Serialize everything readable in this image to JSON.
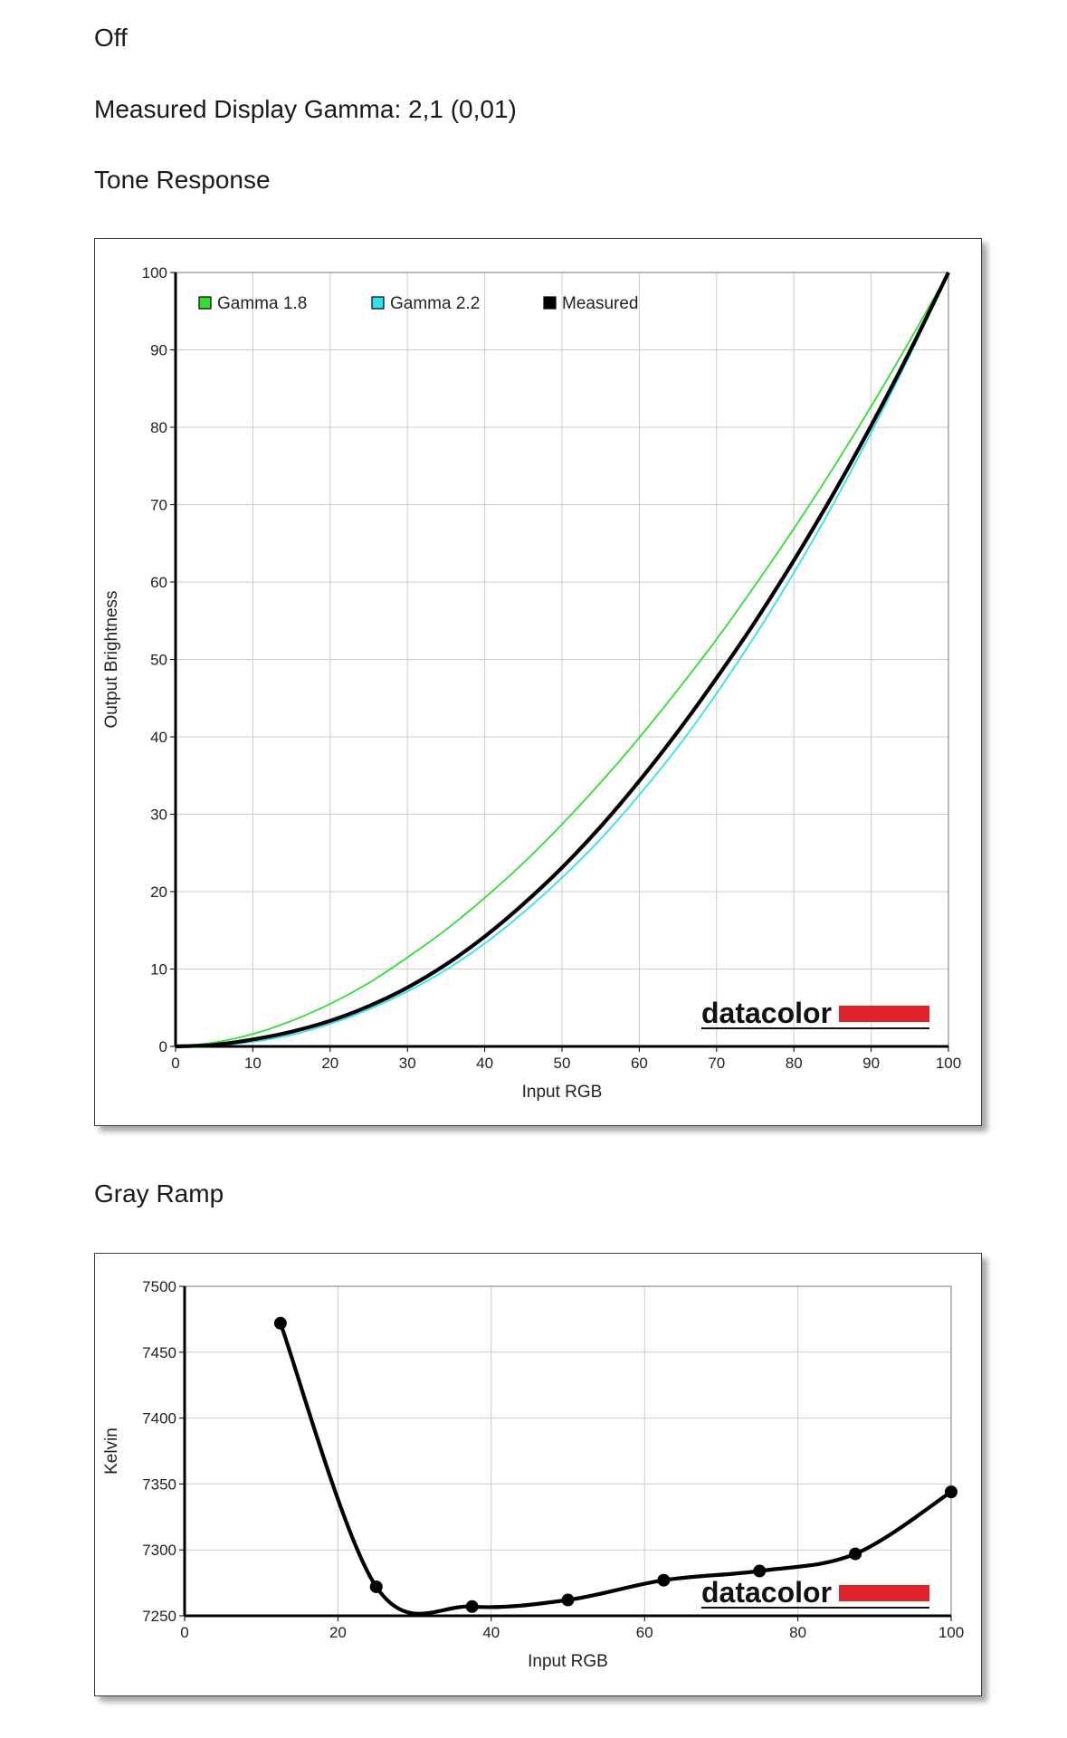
{
  "header": {
    "status": "Off",
    "gamma_readout": "Measured Display Gamma: 2,1 (0,01)",
    "tone_title": "Tone Response",
    "gray_title": "Gray Ramp"
  },
  "colors": {
    "gamma18": "#33dd33",
    "gamma22": "#33e0f0",
    "measured": "#000000",
    "brand_red": "#e0202a",
    "grid": "#cccccc"
  },
  "logo": {
    "text": "datacolor"
  },
  "chart_data": [
    {
      "type": "line",
      "xlabel": "Input RGB",
      "ylabel": "Output Brightness",
      "xlim": [
        0,
        100
      ],
      "ylim": [
        0,
        100
      ],
      "x_ticks": [
        0,
        10,
        20,
        30,
        40,
        50,
        60,
        70,
        80,
        90,
        100
      ],
      "y_ticks": [
        0,
        10,
        20,
        30,
        40,
        50,
        60,
        70,
        80,
        90,
        100
      ],
      "grid": true,
      "legend_position": "top-left",
      "x": [
        0,
        5,
        10,
        15,
        20,
        25,
        30,
        35,
        40,
        45,
        50,
        55,
        60,
        65,
        70,
        75,
        80,
        85,
        90,
        95,
        100
      ],
      "series": [
        {
          "name": "Gamma 1.8",
          "color_key": "gamma18",
          "values": [
            0,
            0.5,
            1.6,
            3.3,
            5.5,
            8.2,
            11.5,
            15.1,
            19.2,
            23.7,
            28.7,
            34.1,
            39.9,
            46.1,
            52.6,
            59.6,
            66.9,
            74.6,
            82.7,
            91.2,
            100
          ]
        },
        {
          "name": "Gamma 2.2",
          "color_key": "gamma22",
          "values": [
            0,
            0.1,
            0.6,
            1.5,
            2.9,
            4.8,
            7.1,
            9.9,
            13.3,
            17.3,
            21.8,
            26.8,
            32.5,
            38.7,
            45.6,
            53.1,
            61.2,
            69.9,
            79.3,
            89.3,
            100
          ]
        },
        {
          "name": "Measured",
          "color_key": "measured",
          "values": [
            0,
            0.2,
            0.9,
            1.9,
            3.3,
            5.2,
            7.6,
            10.6,
            14.2,
            18.4,
            23.1,
            28.4,
            34.3,
            40.7,
            47.6,
            54.9,
            62.8,
            71.2,
            80.2,
            89.8,
            100
          ]
        }
      ]
    },
    {
      "type": "line",
      "xlabel": "Input RGB",
      "ylabel": "Kelvin",
      "xlim": [
        0,
        100
      ],
      "ylim": [
        7250,
        7500
      ],
      "x_ticks": [
        0,
        20,
        40,
        60,
        80,
        100
      ],
      "y_ticks": [
        7250,
        7300,
        7350,
        7400,
        7450,
        7500
      ],
      "grid": true,
      "series": [
        {
          "name": "",
          "color_key": "measured",
          "x": [
            12.5,
            25,
            37.5,
            50,
            62.5,
            75,
            87.5,
            100
          ],
          "values": [
            7472,
            7272,
            7257,
            7262,
            7277,
            7284,
            7297,
            7344
          ]
        }
      ]
    }
  ]
}
